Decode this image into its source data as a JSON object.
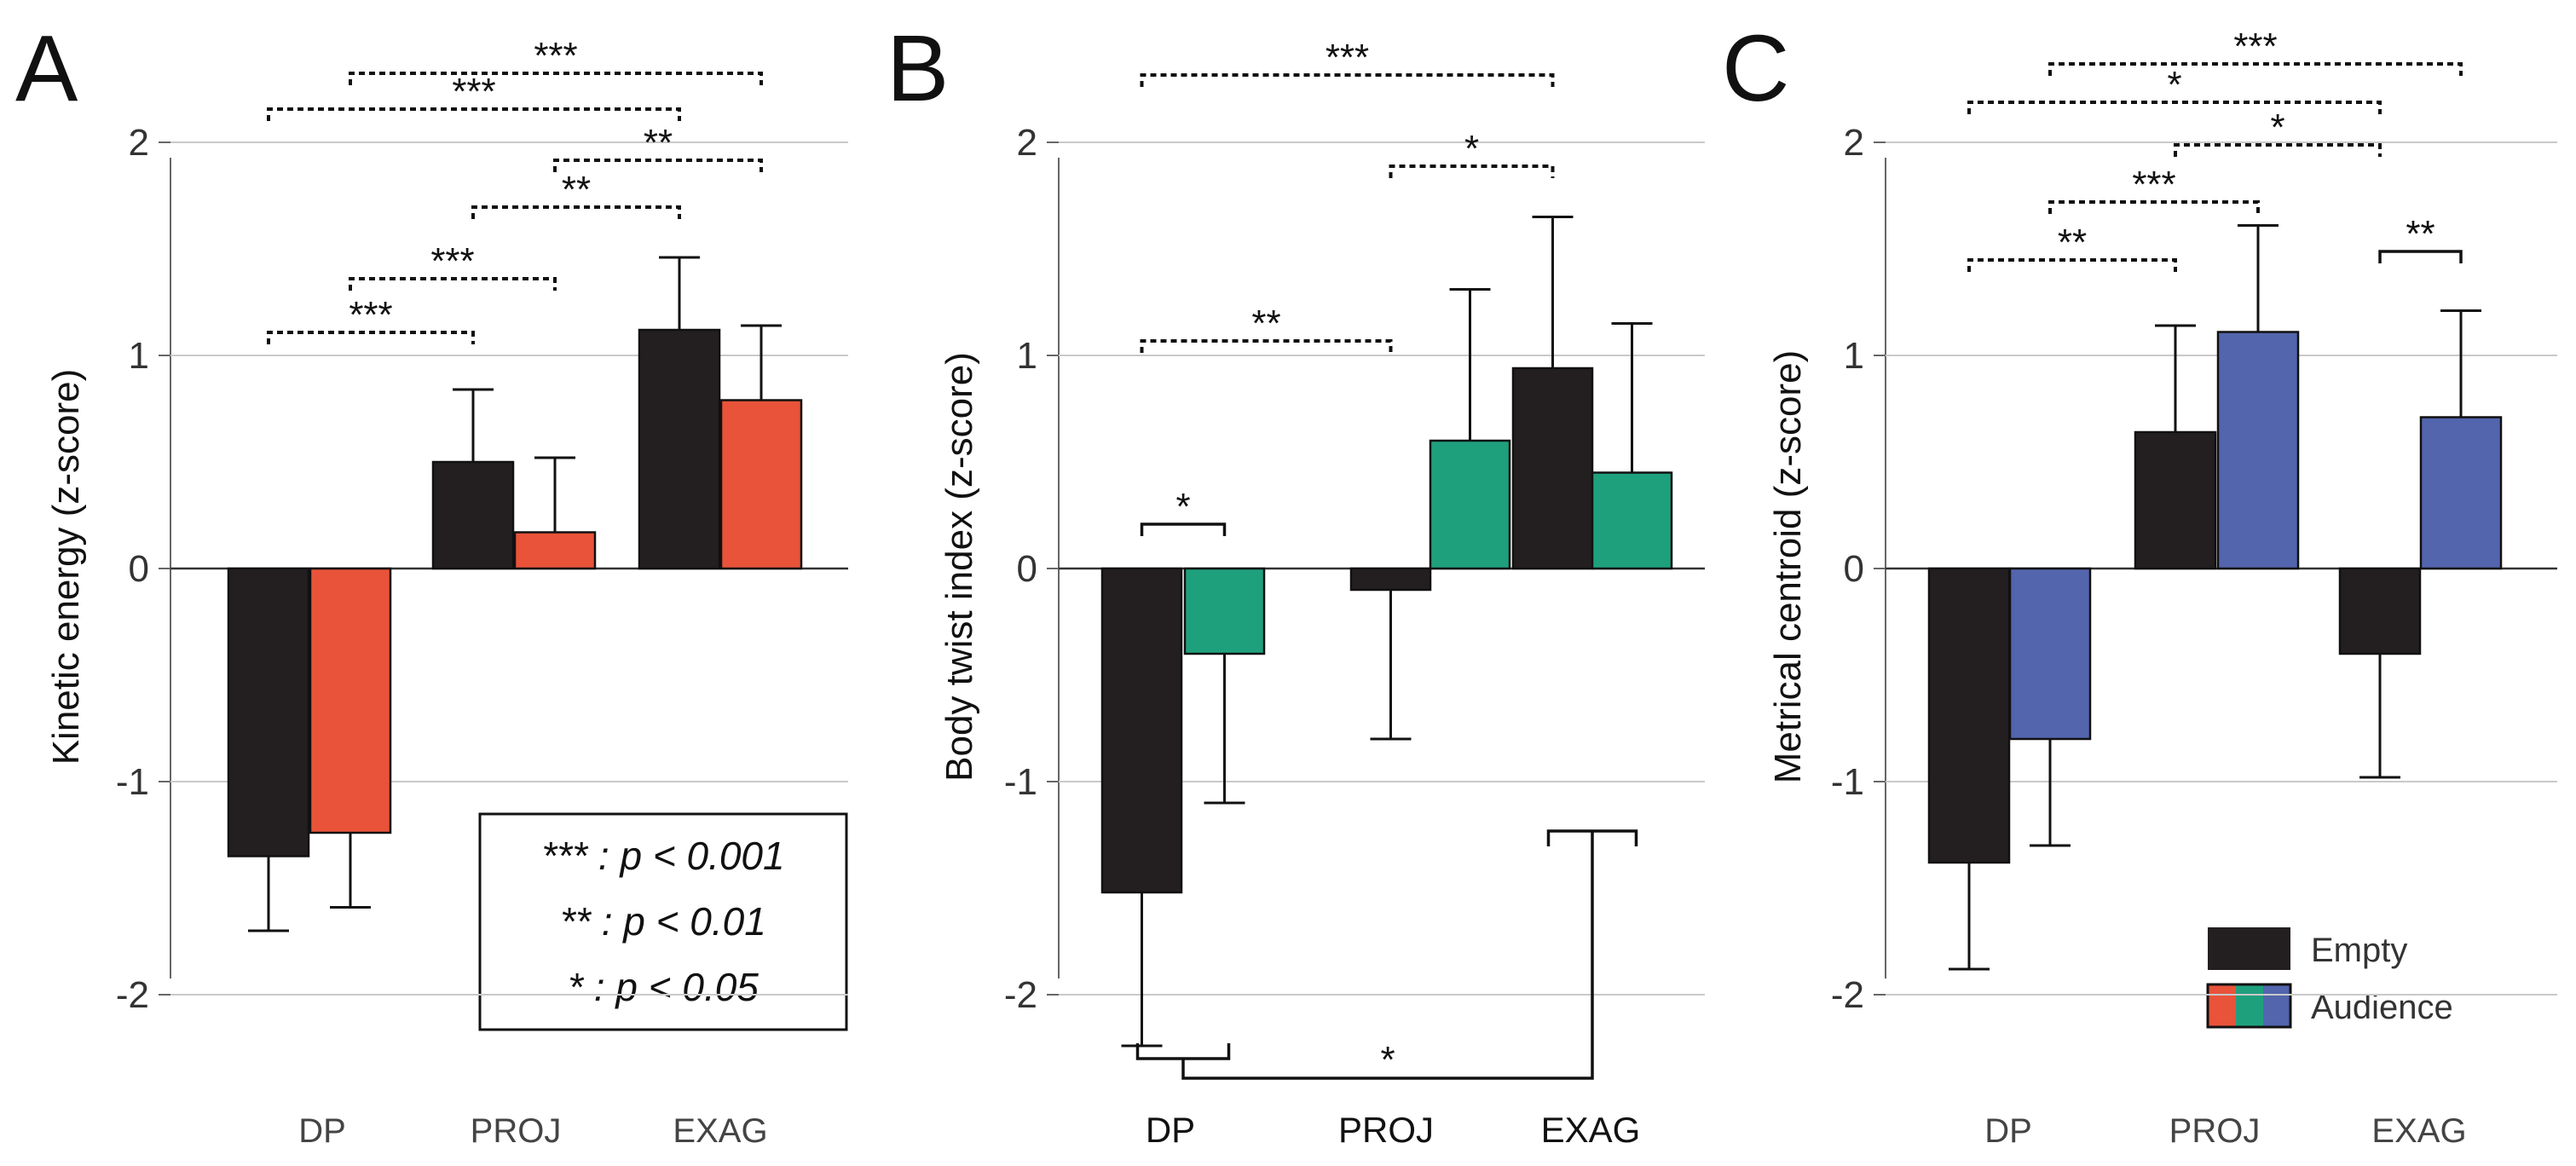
{
  "figure": {
    "legend_empty": "Empty",
    "legend_audience": "Audience",
    "sig_legend": [
      "*** : p < 0.001",
      "** : p < 0.01",
      "* : p < 0.05"
    ]
  },
  "chart_data": [
    {
      "type": "bar",
      "panel": "A",
      "ylabel": "Kinetic energy (z-score)",
      "ylim": [
        -2,
        2
      ],
      "yticks": [
        2,
        1,
        0,
        -1,
        -2
      ],
      "categories": [
        "DP",
        "PROJ",
        "EXAG"
      ],
      "series": [
        {
          "name": "Empty",
          "color": "#231f20",
          "values": [
            -1.35,
            0.5,
            1.12
          ],
          "errors": [
            0.35,
            0.34,
            0.34
          ]
        },
        {
          "name": "Audience",
          "color": "#e8533a",
          "values": [
            -1.24,
            0.17,
            0.79
          ],
          "errors": [
            0.35,
            0.35,
            0.35
          ]
        }
      ],
      "significance": [
        {
          "from": 1,
          "to": 5,
          "label": "***",
          "style": "dotted",
          "level": 0
        },
        {
          "from": 0,
          "to": 4,
          "label": "***",
          "style": "dotted",
          "level": 1
        },
        {
          "from": 3,
          "to": 5,
          "label": "**",
          "style": "dotted",
          "level": 2
        },
        {
          "from": 2,
          "to": 4,
          "label": "**",
          "style": "dotted",
          "level": 3
        },
        {
          "from": 1,
          "to": 3,
          "label": "***",
          "style": "dotted",
          "level": 4
        },
        {
          "from": 0,
          "to": 2,
          "label": "***",
          "style": "dotted",
          "level": 5
        }
      ]
    },
    {
      "type": "bar",
      "panel": "B",
      "ylabel": "Body twist index (z-score)",
      "ylim": [
        -2,
        2
      ],
      "yticks": [
        2,
        1,
        0,
        -1,
        -2
      ],
      "categories": [
        "DP",
        "PROJ",
        "EXAG"
      ],
      "series": [
        {
          "name": "Empty",
          "color": "#231f20",
          "values": [
            -1.52,
            -0.1,
            0.94
          ],
          "errors": [
            0.72,
            0.7,
            0.71
          ]
        },
        {
          "name": "Audience",
          "color": "#1fa07d",
          "values": [
            -0.4,
            0.6,
            0.45
          ],
          "errors": [
            0.7,
            0.71,
            0.7
          ]
        }
      ],
      "significance": [
        {
          "from": 0,
          "to": 4,
          "label": "***",
          "style": "dotted",
          "level": 0
        },
        {
          "from": 2,
          "to": 4,
          "label": "*",
          "style": "dotted",
          "level": 1
        },
        {
          "from": 0,
          "to": 2,
          "label": "**",
          "style": "dotted",
          "level": 2
        },
        {
          "from": 0,
          "to": 1,
          "label": "*",
          "style": "solid",
          "level": 3
        },
        {
          "from": "DP",
          "to": "EXAG",
          "label": "*",
          "style": "solid-bottom",
          "level": 0
        }
      ]
    },
    {
      "type": "bar",
      "panel": "C",
      "ylabel": "Metrical centroid (z-score)",
      "ylim": [
        -2,
        2
      ],
      "yticks": [
        2,
        1,
        0,
        -1,
        -2
      ],
      "categories": [
        "DP",
        "PROJ",
        "EXAG"
      ],
      "series": [
        {
          "name": "Empty",
          "color": "#231f20",
          "values": [
            -1.38,
            0.64,
            -0.4
          ],
          "errors": [
            0.5,
            0.5,
            0.58
          ]
        },
        {
          "name": "Audience",
          "color": "#5265ad",
          "values": [
            -0.8,
            1.11,
            0.71
          ],
          "errors": [
            0.5,
            0.5,
            0.5
          ]
        }
      ],
      "significance": [
        {
          "from": 1,
          "to": 5,
          "label": "***",
          "style": "dotted",
          "level": 0
        },
        {
          "from": 0,
          "to": 4,
          "label": "*",
          "style": "dotted",
          "level": 1
        },
        {
          "from": 2,
          "to": 4,
          "label": "*",
          "style": "dotted",
          "level": 2
        },
        {
          "from": 1,
          "to": 3,
          "label": "***",
          "style": "dotted",
          "level": 3
        },
        {
          "from": 0,
          "to": 2,
          "label": "**",
          "style": "dotted",
          "level": 4
        },
        {
          "from": 4,
          "to": 5,
          "label": "**",
          "style": "solid",
          "level": 5
        }
      ]
    }
  ]
}
